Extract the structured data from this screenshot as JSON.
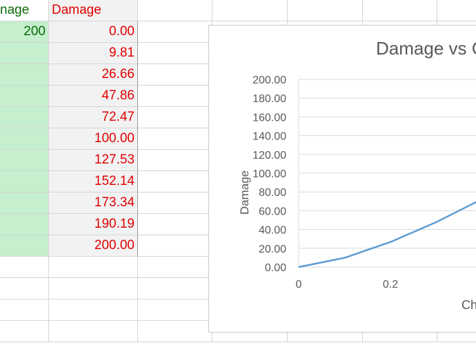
{
  "sheet": {
    "header_a": "nage",
    "header_b": "Damage",
    "first_a_value": "200",
    "damage_values": [
      "0.00",
      "9.81",
      "26.66",
      "47.86",
      "72.47",
      "100.00",
      "127.53",
      "152.14",
      "173.34",
      "190.19",
      "200.00"
    ]
  },
  "chart": {
    "title_visible": "Damage vs C",
    "ylabel": "Damage",
    "xlabel_visible": "Ch",
    "yticks": [
      "200.00",
      "180.00",
      "160.00",
      "140.00",
      "120.00",
      "100.00",
      "80.00",
      "60.00",
      "40.00",
      "20.00",
      "0.00"
    ],
    "xticks": [
      "0",
      "0.2",
      "0"
    ]
  },
  "colors": {
    "green_fill": "#c6efce",
    "green_text": "#0b6b0b",
    "red_text": "#e00000",
    "line": "#5b9bd5"
  },
  "chart_data": {
    "type": "line",
    "title": "Damage vs C",
    "xlabel": "Ch",
    "ylabel": "Damage",
    "ylim": [
      0,
      200
    ],
    "x": [
      0,
      0.1,
      0.2,
      0.3,
      0.4
    ],
    "series": [
      {
        "values": [
          0.0,
          9.81,
          26.66,
          47.86,
          72.47
        ]
      }
    ]
  }
}
